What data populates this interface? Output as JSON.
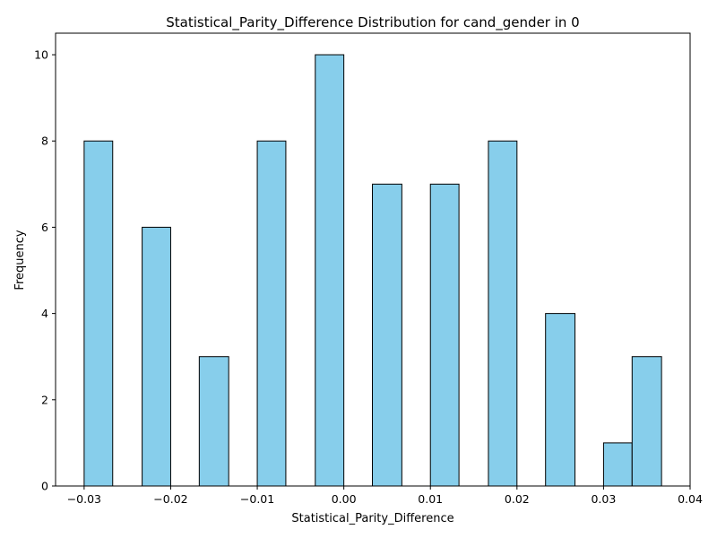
{
  "chart_data": {
    "type": "bar",
    "title": "Statistical_Parity_Difference Distribution for cand_gender in 0",
    "xlabel": "Statistical_Parity_Difference",
    "ylabel": "Frequency",
    "xlim": [
      -0.0333,
      0.04
    ],
    "ylim": [
      0,
      10.5
    ],
    "grid": false,
    "bar_color": "#87ceeb",
    "edge_color": "#000000",
    "x_ticks": [
      -0.03,
      -0.02,
      -0.01,
      0.0,
      0.01,
      0.02,
      0.03,
      0.04
    ],
    "x_tick_labels": [
      "−0.03",
      "−0.02",
      "−0.01",
      "0.00",
      "0.01",
      "0.02",
      "0.03",
      "0.04"
    ],
    "y_ticks": [
      0,
      2,
      4,
      6,
      8,
      10
    ],
    "y_tick_labels": [
      "0",
      "2",
      "4",
      "6",
      "8",
      "10"
    ],
    "bins": [
      {
        "start": -0.03,
        "end": -0.0267,
        "count": 8
      },
      {
        "start": -0.0267,
        "end": -0.0233,
        "count": 0
      },
      {
        "start": -0.0233,
        "end": -0.02,
        "count": 6
      },
      {
        "start": -0.02,
        "end": -0.0167,
        "count": 0
      },
      {
        "start": -0.0167,
        "end": -0.0133,
        "count": 3
      },
      {
        "start": -0.0133,
        "end": -0.01,
        "count": 0
      },
      {
        "start": -0.01,
        "end": -0.0067,
        "count": 8
      },
      {
        "start": -0.0067,
        "end": -0.0033,
        "count": 0
      },
      {
        "start": -0.0033,
        "end": 0.0,
        "count": 10
      },
      {
        "start": 0.0,
        "end": 0.0033,
        "count": 0
      },
      {
        "start": 0.0033,
        "end": 0.0067,
        "count": 7
      },
      {
        "start": 0.0067,
        "end": 0.01,
        "count": 0
      },
      {
        "start": 0.01,
        "end": 0.0133,
        "count": 7
      },
      {
        "start": 0.0133,
        "end": 0.0167,
        "count": 0
      },
      {
        "start": 0.0167,
        "end": 0.02,
        "count": 8
      },
      {
        "start": 0.02,
        "end": 0.0233,
        "count": 0
      },
      {
        "start": 0.0233,
        "end": 0.0267,
        "count": 4
      },
      {
        "start": 0.0267,
        "end": 0.03,
        "count": 0
      },
      {
        "start": 0.03,
        "end": 0.0333,
        "count": 1
      },
      {
        "start": 0.0333,
        "end": 0.0367,
        "count": 3
      }
    ]
  }
}
